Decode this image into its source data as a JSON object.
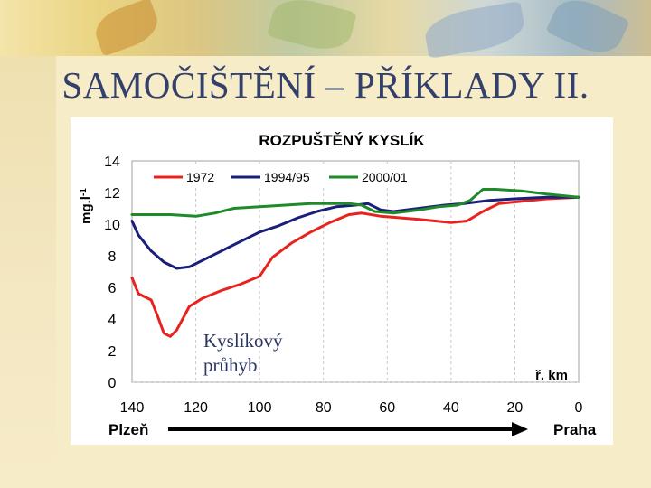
{
  "slide": {
    "title": "SAMOČIŠTĚNÍ – PŘÍKLADY II.",
    "annotation_line1": "Kyslíkový",
    "annotation_line2": "průhyb"
  },
  "colors": {
    "series_1972": "#e8231f",
    "series_1994_95": "#1a1f7a",
    "series_2000_01": "#1e8a2a",
    "arrow": "#000000",
    "plot_border": "#b0b0b0"
  },
  "chart_data": {
    "type": "line",
    "title": "ROZPUŠTĚNÝ KYSLÍK",
    "ylabel": "mg.l-1",
    "ylabel_main": "mg.l",
    "ylabel_sup": "-1",
    "xlabel": "ř. km",
    "x_direction": "reversed",
    "xlim": [
      140,
      0
    ],
    "ylim": [
      0,
      14
    ],
    "x_ticks": [
      140,
      120,
      100,
      80,
      60,
      40,
      20,
      0
    ],
    "y_ticks": [
      0,
      2,
      4,
      6,
      8,
      10,
      12,
      14
    ],
    "grid": "vertical",
    "legend_position": "top",
    "start_label": "Plzeň",
    "end_label": "Praha",
    "series": [
      {
        "name": "1972",
        "color_key": "series_1972",
        "points": [
          [
            140,
            6.6
          ],
          [
            138,
            5.6
          ],
          [
            134,
            5.2
          ],
          [
            132,
            4.2
          ],
          [
            130,
            3.1
          ],
          [
            128,
            2.9
          ],
          [
            126,
            3.3
          ],
          [
            122,
            4.8
          ],
          [
            118,
            5.3
          ],
          [
            112,
            5.8
          ],
          [
            106,
            6.2
          ],
          [
            100,
            6.7
          ],
          [
            96,
            7.9
          ],
          [
            90,
            8.8
          ],
          [
            84,
            9.5
          ],
          [
            78,
            10.1
          ],
          [
            72,
            10.6
          ],
          [
            68,
            10.7
          ],
          [
            62,
            10.5
          ],
          [
            56,
            10.4
          ],
          [
            50,
            10.3
          ],
          [
            40,
            10.1
          ],
          [
            35,
            10.2
          ],
          [
            30,
            10.8
          ],
          [
            25,
            11.3
          ],
          [
            20,
            11.4
          ],
          [
            10,
            11.6
          ],
          [
            0,
            11.7
          ]
        ]
      },
      {
        "name": "1994/95",
        "color_key": "series_1994_95",
        "points": [
          [
            140,
            10.2
          ],
          [
            138,
            9.3
          ],
          [
            134,
            8.3
          ],
          [
            130,
            7.6
          ],
          [
            126,
            7.2
          ],
          [
            122,
            7.3
          ],
          [
            118,
            7.7
          ],
          [
            112,
            8.3
          ],
          [
            106,
            8.9
          ],
          [
            100,
            9.5
          ],
          [
            94,
            9.9
          ],
          [
            88,
            10.4
          ],
          [
            82,
            10.8
          ],
          [
            76,
            11.1
          ],
          [
            70,
            11.2
          ],
          [
            66,
            11.3
          ],
          [
            62,
            10.9
          ],
          [
            58,
            10.8
          ],
          [
            50,
            11.0
          ],
          [
            42,
            11.2
          ],
          [
            36,
            11.3
          ],
          [
            32,
            11.4
          ],
          [
            28,
            11.5
          ],
          [
            20,
            11.6
          ],
          [
            10,
            11.7
          ],
          [
            0,
            11.7
          ]
        ]
      },
      {
        "name": "2000/01",
        "color_key": "series_2000_01",
        "points": [
          [
            140,
            10.6
          ],
          [
            134,
            10.6
          ],
          [
            128,
            10.6
          ],
          [
            120,
            10.5
          ],
          [
            114,
            10.7
          ],
          [
            108,
            11.0
          ],
          [
            100,
            11.1
          ],
          [
            92,
            11.2
          ],
          [
            84,
            11.3
          ],
          [
            76,
            11.3
          ],
          [
            72,
            11.3
          ],
          [
            68,
            11.2
          ],
          [
            64,
            10.8
          ],
          [
            58,
            10.7
          ],
          [
            50,
            10.9
          ],
          [
            44,
            11.1
          ],
          [
            38,
            11.2
          ],
          [
            34,
            11.5
          ],
          [
            30,
            12.2
          ],
          [
            26,
            12.2
          ],
          [
            18,
            12.1
          ],
          [
            10,
            11.9
          ],
          [
            0,
            11.7
          ]
        ]
      }
    ]
  }
}
